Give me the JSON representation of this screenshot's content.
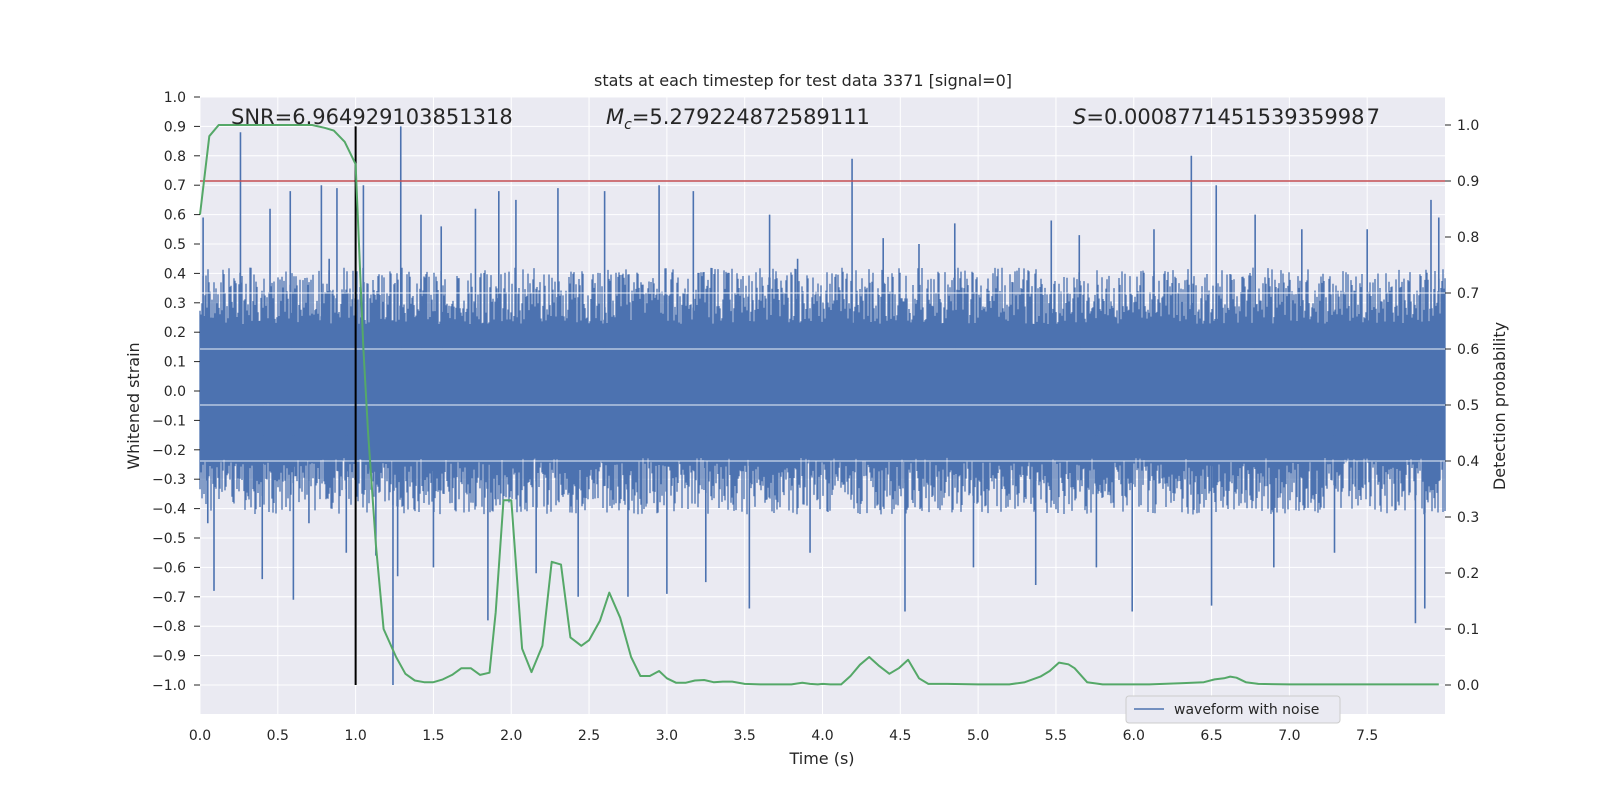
{
  "chart_data": {
    "type": "line",
    "title": "stats at each timestep for test data 3371 [signal=0]",
    "xlabel": "Time (s)",
    "ylabel": "Whitened strain",
    "y2label": "Detection probability",
    "xlim": [
      0.0,
      8.0
    ],
    "ylim": [
      -1.09,
      1.0
    ],
    "y2lim": [
      -0.05,
      1.05
    ],
    "xticks": [
      "0.0",
      "0.5",
      "1.0",
      "1.5",
      "2.0",
      "2.5",
      "3.0",
      "3.5",
      "4.0",
      "4.5",
      "5.0",
      "5.5",
      "6.0",
      "6.5",
      "7.0",
      "7.5"
    ],
    "yticks": [
      "1.0",
      "0.9",
      "0.8",
      "0.7",
      "0.6",
      "0.5",
      "0.4",
      "0.3",
      "0.2",
      "0.1",
      "0.0",
      "−0.1",
      "−0.2",
      "−0.3",
      "−0.4",
      "−0.5",
      "−0.6",
      "−0.7",
      "−0.8",
      "−0.9",
      "−1.0"
    ],
    "y2ticks": [
      "1.0",
      "0.9",
      "0.8",
      "0.7",
      "0.6",
      "0.5",
      "0.4",
      "0.3",
      "0.2",
      "0.1",
      "0.0"
    ],
    "grid": true,
    "annotations": {
      "snr": "SNR=6.964929103851318",
      "mc_symbol": "M",
      "mc_sub": "c",
      "mc_value": "=5.279224872589111",
      "s_symbol": "S",
      "s_value": "=0.000877145153935998 7"
    },
    "threshold": {
      "y2": 0.9,
      "color": "#c44e52"
    },
    "vline": {
      "x": 1.0,
      "y_from": -1.0,
      "y_to": 0.9,
      "color": "#000000"
    },
    "legend": {
      "label": "waveform with noise",
      "placement": "lower-right"
    },
    "series": [
      {
        "name": "waveform with noise",
        "color": "#4c72b0",
        "axis": "left",
        "envelope_typical": 0.35,
        "spikes": [
          [
            0.02,
            0.59
          ],
          [
            0.05,
            -0.45
          ],
          [
            0.09,
            -0.68
          ],
          [
            0.26,
            0.88
          ],
          [
            0.4,
            -0.64
          ],
          [
            0.45,
            0.62
          ],
          [
            0.58,
            0.68
          ],
          [
            0.6,
            -0.71
          ],
          [
            0.7,
            -0.45
          ],
          [
            0.78,
            0.7
          ],
          [
            0.83,
            0.45
          ],
          [
            0.88,
            0.69
          ],
          [
            0.94,
            -0.55
          ],
          [
            1.05,
            0.7
          ],
          [
            1.13,
            -0.56
          ],
          [
            1.24,
            -1.0
          ],
          [
            1.27,
            -0.63
          ],
          [
            1.29,
            0.9
          ],
          [
            1.42,
            0.6
          ],
          [
            1.5,
            -0.6
          ],
          [
            1.55,
            0.56
          ],
          [
            1.77,
            0.62
          ],
          [
            1.85,
            -0.78
          ],
          [
            1.92,
            0.68
          ],
          [
            2.03,
            0.65
          ],
          [
            2.16,
            -0.62
          ],
          [
            2.3,
            0.69
          ],
          [
            2.43,
            -0.7
          ],
          [
            2.6,
            0.68
          ],
          [
            2.75,
            -0.7
          ],
          [
            2.95,
            0.7
          ],
          [
            3.0,
            -0.69
          ],
          [
            3.17,
            0.68
          ],
          [
            3.25,
            -0.65
          ],
          [
            3.53,
            -0.74
          ],
          [
            3.66,
            0.6
          ],
          [
            3.84,
            0.45
          ],
          [
            3.92,
            -0.55
          ],
          [
            4.19,
            0.79
          ],
          [
            4.39,
            0.52
          ],
          [
            4.53,
            -0.75
          ],
          [
            4.62,
            0.5
          ],
          [
            4.85,
            0.57
          ],
          [
            4.97,
            -0.6
          ],
          [
            5.37,
            -0.66
          ],
          [
            5.47,
            0.58
          ],
          [
            5.65,
            0.53
          ],
          [
            5.76,
            -0.6
          ],
          [
            5.99,
            -0.75
          ],
          [
            6.13,
            0.55
          ],
          [
            6.37,
            0.8
          ],
          [
            6.5,
            -0.73
          ],
          [
            6.53,
            0.7
          ],
          [
            6.78,
            0.6
          ],
          [
            6.9,
            -0.6
          ],
          [
            7.08,
            0.55
          ],
          [
            7.29,
            -0.55
          ],
          [
            7.5,
            0.55
          ],
          [
            7.81,
            -0.79
          ],
          [
            7.87,
            -0.74
          ],
          [
            7.91,
            0.65
          ],
          [
            7.96,
            0.59
          ]
        ]
      },
      {
        "name": "detection probability",
        "color": "#55a868",
        "axis": "right",
        "x": [
          0.0,
          0.06,
          0.12,
          0.2,
          0.4,
          0.6,
          0.72,
          0.8,
          0.86,
          0.93,
          1.0,
          1.05,
          1.08,
          1.13,
          1.18,
          1.26,
          1.32,
          1.38,
          1.44,
          1.5,
          1.56,
          1.62,
          1.68,
          1.74,
          1.8,
          1.86,
          1.9,
          1.95,
          2.0,
          2.07,
          2.13,
          2.2,
          2.26,
          2.32,
          2.38,
          2.45,
          2.5,
          2.57,
          2.63,
          2.7,
          2.77,
          2.83,
          2.89,
          2.95,
          3.0,
          3.06,
          3.12,
          3.18,
          3.24,
          3.3,
          3.36,
          3.42,
          3.5,
          3.6,
          3.7,
          3.8,
          3.87,
          3.92,
          3.97,
          4.0,
          4.05,
          4.12,
          4.18,
          4.24,
          4.3,
          4.36,
          4.43,
          4.49,
          4.55,
          4.62,
          4.68,
          4.74,
          4.8,
          5.0,
          5.2,
          5.3,
          5.4,
          5.46,
          5.52,
          5.58,
          5.62,
          5.7,
          5.8,
          5.95,
          6.1,
          6.3,
          6.45,
          6.52,
          6.58,
          6.62,
          6.66,
          6.72,
          6.8,
          7.0,
          7.2,
          7.4,
          7.6,
          7.8,
          7.96
        ],
        "values": [
          0.84,
          0.98,
          1.0,
          1.0,
          1.0,
          1.0,
          1.0,
          0.995,
          0.99,
          0.97,
          0.93,
          0.6,
          0.45,
          0.25,
          0.1,
          0.05,
          0.02,
          0.008,
          0.005,
          0.005,
          0.01,
          0.018,
          0.03,
          0.03,
          0.018,
          0.022,
          0.13,
          0.33,
          0.33,
          0.065,
          0.023,
          0.07,
          0.22,
          0.215,
          0.085,
          0.07,
          0.08,
          0.115,
          0.165,
          0.12,
          0.05,
          0.016,
          0.016,
          0.025,
          0.012,
          0.004,
          0.004,
          0.008,
          0.009,
          0.005,
          0.006,
          0.006,
          0.002,
          0.001,
          0.001,
          0.001,
          0.004,
          0.002,
          0.001,
          0.002,
          0.001,
          0.001,
          0.016,
          0.036,
          0.05,
          0.035,
          0.02,
          0.03,
          0.045,
          0.012,
          0.002,
          0.002,
          0.002,
          0.001,
          0.001,
          0.005,
          0.015,
          0.025,
          0.04,
          0.037,
          0.03,
          0.005,
          0.001,
          0.001,
          0.001,
          0.003,
          0.005,
          0.01,
          0.012,
          0.015,
          0.013,
          0.005,
          0.002,
          0.001,
          0.001,
          0.001,
          0.001,
          0.001,
          0.001
        ]
      }
    ]
  }
}
